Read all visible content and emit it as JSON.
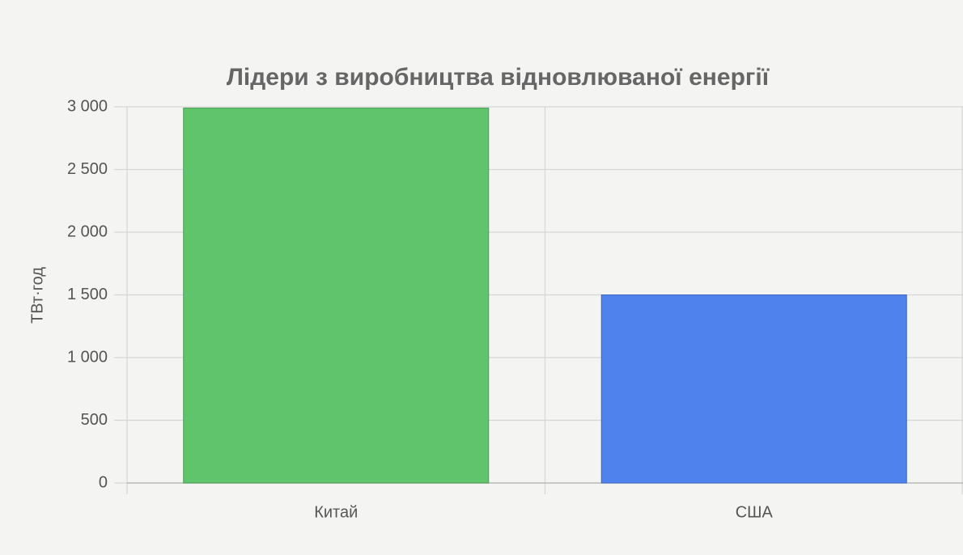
{
  "chart_data": {
    "type": "bar",
    "title": "Лідери з виробництва відновлюваної енергії",
    "y_label": "ТВт·год",
    "categories": [
      "Китай",
      "США"
    ],
    "values": [
      2990,
      1500
    ],
    "colors": [
      "#5fc46b",
      "#4f82ed"
    ],
    "ylim": [
      0,
      3000
    ],
    "yticks": [
      0,
      500,
      {
        "value": 1000,
        "label": "1 000"
      },
      {
        "value": 1500,
        "label": "1 500"
      },
      {
        "value": 2000,
        "label": "2 000"
      },
      {
        "value": 2500,
        "label": "2 500"
      },
      {
        "value": 3000,
        "label": "3 000"
      }
    ],
    "grid": true
  }
}
